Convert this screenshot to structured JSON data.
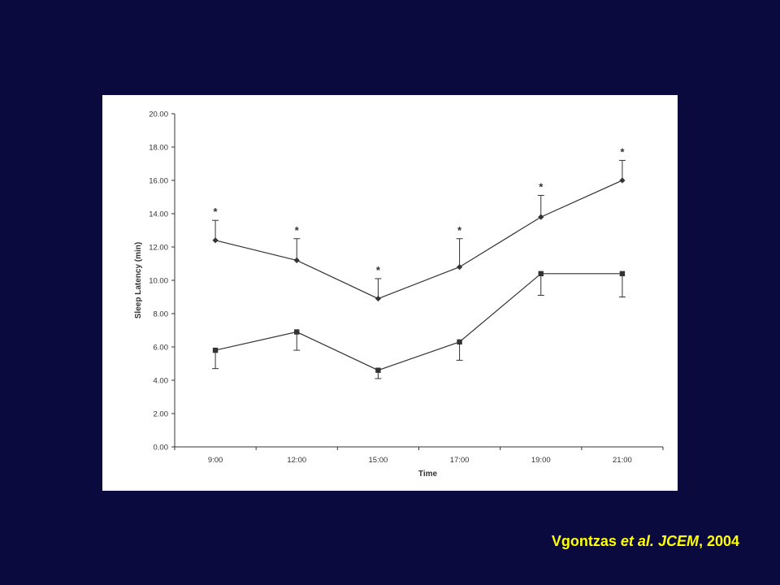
{
  "chart_data": {
    "type": "line",
    "xlabel": "Time",
    "ylabel": "Sleep Latency (min)",
    "categories": [
      "9:00",
      "12:00",
      "15:00",
      "17:00",
      "19:00",
      "21:00"
    ],
    "ylim": [
      0,
      20
    ],
    "yticks": [
      "0.00",
      "2.00",
      "4.00",
      "6.00",
      "8.00",
      "10.00",
      "12.00",
      "14.00",
      "16.00",
      "18.00",
      "20.00"
    ],
    "grid": false,
    "legend": "none",
    "series": [
      {
        "marker": "diamond",
        "values": [
          12.4,
          11.2,
          8.9,
          10.8,
          13.8,
          16.0
        ],
        "error_plus": [
          1.2,
          1.3,
          1.2,
          1.7,
          1.3,
          1.2
        ],
        "error_minus": [
          0,
          0,
          0,
          0,
          0,
          0
        ],
        "annotations": [
          "*",
          "*",
          "*",
          "*",
          "*",
          "*"
        ]
      },
      {
        "marker": "square",
        "values": [
          5.8,
          6.9,
          4.6,
          6.3,
          10.4,
          10.4
        ],
        "error_plus": [
          0,
          0,
          0,
          0,
          0,
          0
        ],
        "error_minus": [
          1.1,
          1.1,
          0.5,
          1.1,
          1.3,
          1.4
        ],
        "annotations": [
          "",
          "",
          "",
          "",
          "",
          ""
        ]
      }
    ]
  },
  "citation": {
    "author": "Vgontzas ",
    "etal": "et al. ",
    "journal": "JCEM",
    "year": ", 2004"
  },
  "colors": {
    "background": "#0a0a3e",
    "panel": "#ffffff",
    "ink": "#333333",
    "citation": "#ffff00"
  }
}
